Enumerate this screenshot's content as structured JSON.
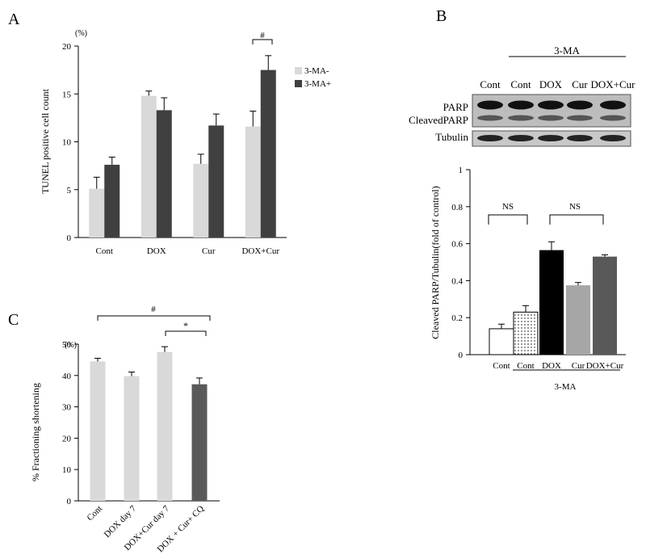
{
  "panels": {
    "a": "A",
    "b": "B",
    "c": "C"
  },
  "chart_data": [
    {
      "type": "bar",
      "panel": "A",
      "categories": [
        "Cont",
        "DOX",
        "Cur",
        "DOX+Cur"
      ],
      "series": [
        {
          "name": "3-MA-",
          "color": "#d9d9d9",
          "values": [
            5.1,
            14.8,
            7.7,
            11.6
          ],
          "errors": [
            1.2,
            0.5,
            1.0,
            1.6
          ]
        },
        {
          "name": "3-MA+",
          "color": "#404040",
          "values": [
            7.6,
            13.3,
            11.7,
            17.5
          ],
          "errors": [
            0.8,
            1.3,
            1.2,
            1.5
          ]
        }
      ],
      "ylabel": "TUNEL positive cell count",
      "yunit": "(%)",
      "ylim": [
        0,
        20
      ],
      "yticks": [
        "0",
        "5",
        "10",
        "15",
        "20"
      ],
      "grid": false,
      "legend": "top-right",
      "annotation": "#"
    },
    {
      "type": "bar",
      "panel": "B",
      "categories": [
        "Cont",
        "Cont",
        "DOX",
        "Cur",
        "DOX+Cur"
      ],
      "values": [
        0.14,
        0.23,
        0.565,
        0.375,
        0.53
      ],
      "errors": [
        0.025,
        0.035,
        0.045,
        0.015,
        0.01
      ],
      "colors": [
        "#ffffff",
        "dots",
        "#000000",
        "#a6a6a6",
        "#595959"
      ],
      "ylabel": "Cleaved PARP/Tubulin(fold of control)",
      "ylim": [
        0,
        1
      ],
      "yticks": [
        "0",
        "0.2",
        "0.4",
        "0.6",
        "0.8",
        "1"
      ],
      "group_label": "3-MA",
      "annotations": [
        "NS",
        "NS"
      ]
    },
    {
      "type": "bar",
      "panel": "C",
      "categories": [
        "Cont",
        "DOX day 7",
        "DOX+Cur day 7",
        "DOX + Cur+ CQ"
      ],
      "values": [
        44.5,
        39.8,
        47.5,
        37.2
      ],
      "errors": [
        1.0,
        1.3,
        1.7,
        2.0
      ],
      "colors": [
        "#d9d9d9",
        "#d9d9d9",
        "#d9d9d9",
        "#595959"
      ],
      "ylabel": "% Fractioning shortening",
      "yunit": "(%)",
      "ylim": [
        0,
        50
      ],
      "yticks": [
        "0",
        "10",
        "20",
        "30",
        "40",
        "50"
      ],
      "annotations": [
        "#",
        "*"
      ]
    }
  ],
  "blot": {
    "group_label": "3-MA",
    "lanes": [
      "Cont",
      "Cont",
      "DOX",
      "Cur",
      "DOX+Cur"
    ],
    "rows": [
      "PARP",
      "CleavedPARP",
      "Tubulin"
    ]
  }
}
